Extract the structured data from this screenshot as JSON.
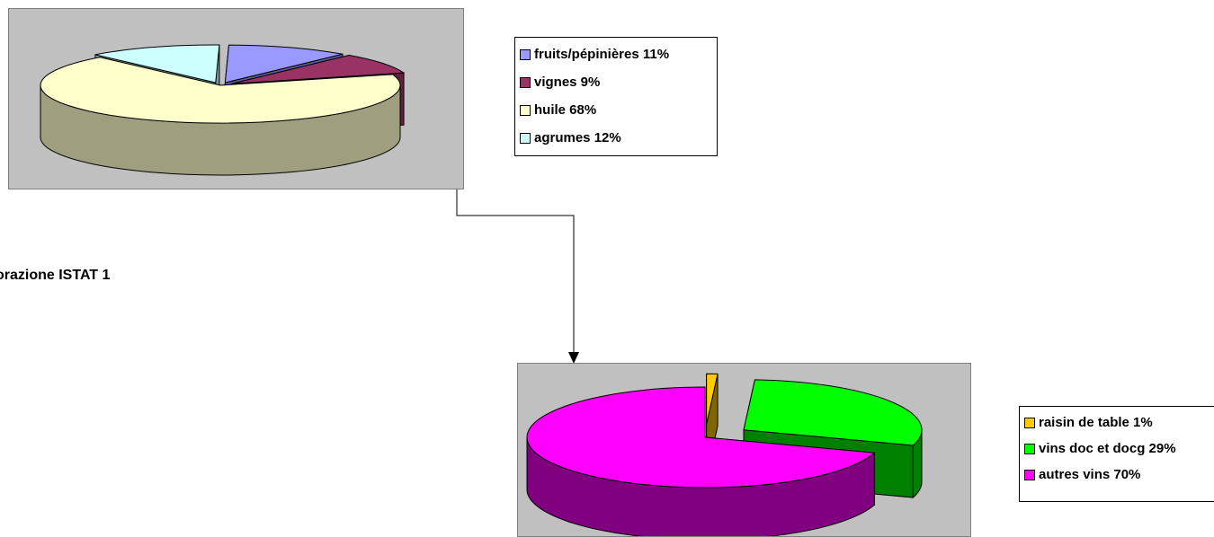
{
  "source_note": "orazione ISTAT 1",
  "chart_data": [
    {
      "type": "pie",
      "categories": [
        "fruits/pépinières 11%",
        "vignes 9%",
        "huile 68%",
        "agrumes 12%"
      ],
      "values": [
        11,
        9,
        68,
        12
      ],
      "colors": [
        "#9999ff",
        "#993366",
        "#ffffcc",
        "#ccffff"
      ],
      "side_colors": [
        "#5f5f9f",
        "#5f203f",
        "#9f9f7f",
        "#7f9f9f"
      ],
      "exploded": [
        true,
        true,
        false,
        true
      ],
      "three_d": true,
      "legend_position": "right",
      "legend": [
        {
          "label": "fruits/pépinières 11%",
          "color": "#9999ff"
        },
        {
          "label": "vignes 9%",
          "color": "#993366"
        },
        {
          "label": "huile 68%",
          "color": "#ffffcc"
        },
        {
          "label": "agrumes 12%",
          "color": "#ccffff"
        }
      ]
    },
    {
      "type": "pie",
      "categories": [
        "raisin de table 1%",
        "vins doc et docg 29%",
        "autres vins 70%"
      ],
      "values": [
        1,
        29,
        70
      ],
      "colors": [
        "#ffcc00",
        "#00ff00",
        "#ff00ff"
      ],
      "side_colors": [
        "#7f6600",
        "#008000",
        "#800080"
      ],
      "exploded": [
        true,
        true,
        false
      ],
      "three_d": true,
      "legend_position": "right",
      "legend": [
        {
          "label": "raisin de table 1%",
          "color": "#ffcc00"
        },
        {
          "label": "vins doc et docg 29%",
          "color": "#00ff00"
        },
        {
          "label": "autres vins 70%",
          "color": "#ff00ff"
        }
      ]
    }
  ]
}
